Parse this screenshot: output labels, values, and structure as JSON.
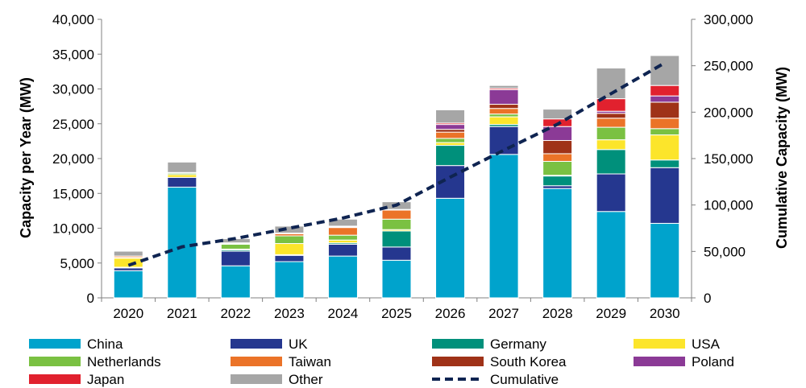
{
  "chart_data": {
    "type": "bar",
    "stacked": true,
    "title": "",
    "xlabel": "",
    "ylabel": "Capacity per Year (MW)",
    "y2label": "Cumulative Capacity (MW)",
    "ylim": [
      0,
      40000
    ],
    "y2lim": [
      0,
      300000
    ],
    "yticks": [
      "0",
      "5,000",
      "10,000",
      "15,000",
      "20,000",
      "25,000",
      "30,000",
      "35,000",
      "40,000"
    ],
    "y2ticks": [
      "0",
      "50,000",
      "100,000",
      "150,000",
      "200,000",
      "250,000",
      "300,000"
    ],
    "categories": [
      "2020",
      "2021",
      "2022",
      "2023",
      "2024",
      "2025",
      "2026",
      "2027",
      "2028",
      "2029",
      "2030"
    ],
    "legend_position": "bottom",
    "series": [
      {
        "name": "China",
        "color": "#00A3CC",
        "values": [
          3900,
          15900,
          4600,
          5200,
          6000,
          5400,
          14300,
          20600,
          15700,
          12400,
          10700
        ]
      },
      {
        "name": "UK",
        "color": "#25378F",
        "values": [
          400,
          1400,
          2100,
          900,
          1700,
          1900,
          4700,
          4000,
          400,
          5400,
          8000
        ]
      },
      {
        "name": "Germany",
        "color": "#00907B",
        "values": [
          100,
          0,
          200,
          100,
          200,
          2300,
          2900,
          300,
          1400,
          3500,
          1100
        ]
      },
      {
        "name": "USA",
        "color": "#FCE52B",
        "values": [
          1300,
          400,
          100,
          1600,
          400,
          200,
          400,
          1100,
          100,
          1400,
          3600
        ]
      },
      {
        "name": "Netherlands",
        "color": "#7AC142",
        "values": [
          100,
          200,
          700,
          1100,
          700,
          1500,
          600,
          400,
          2000,
          1800,
          900
        ]
      },
      {
        "name": "Taiwan",
        "color": "#EB7328",
        "values": [
          200,
          0,
          100,
          300,
          1100,
          1300,
          900,
          800,
          1100,
          1300,
          1500
        ]
      },
      {
        "name": "South Korea",
        "color": "#9F3218",
        "values": [
          0,
          0,
          0,
          100,
          100,
          0,
          400,
          600,
          1900,
          700,
          2300
        ]
      },
      {
        "name": "Poland",
        "color": "#8B3A96",
        "values": [
          0,
          0,
          0,
          0,
          0,
          0,
          700,
          2100,
          2000,
          300,
          900
        ]
      },
      {
        "name": "Japan",
        "color": "#E1212E",
        "values": [
          0,
          100,
          100,
          0,
          100,
          100,
          200,
          200,
          1100,
          1800,
          1500
        ]
      },
      {
        "name": "Other",
        "color": "#A6A6A6",
        "values": [
          700,
          1500,
          600,
          1000,
          1000,
          1100,
          1900,
          400,
          1400,
          4400,
          4300
        ]
      },
      {
        "name": "Cumulative",
        "color": "#0F2451",
        "type": "line",
        "dashed": true,
        "axis": "y2",
        "values": [
          35000,
          55000,
          64000,
          75000,
          86000,
          100000,
          130000,
          159000,
          187000,
          220000,
          253000
        ]
      }
    ]
  }
}
